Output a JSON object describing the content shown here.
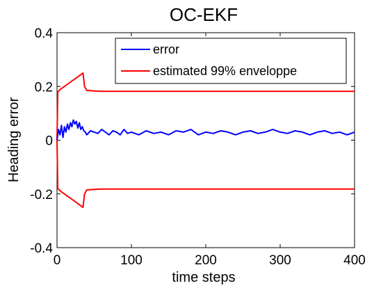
{
  "chart_data": {
    "type": "line",
    "title": "OC-EKF",
    "xlabel": "time steps",
    "ylabel": "Heading error",
    "xlim": [
      0,
      400
    ],
    "ylim": [
      -0.4,
      0.4
    ],
    "xticks": [
      0,
      100,
      200,
      300,
      400
    ],
    "yticks": [
      -0.4,
      -0.2,
      0,
      0.2,
      0.4
    ],
    "xtick_labels": [
      "0",
      "100",
      "200",
      "300",
      "400"
    ],
    "ytick_labels": [
      "-0.4",
      "-0.2",
      "0",
      "0.2",
      "0.4"
    ],
    "grid": false,
    "legend_position": "top-right",
    "series": [
      {
        "name": "error",
        "color": "#0000ff",
        "x": [
          0,
          2,
          4,
          6,
          8,
          10,
          12,
          14,
          16,
          18,
          20,
          22,
          24,
          26,
          28,
          30,
          32,
          34,
          36,
          38,
          40,
          45,
          50,
          55,
          60,
          65,
          70,
          75,
          80,
          85,
          90,
          95,
          100,
          110,
          120,
          130,
          140,
          150,
          160,
          170,
          180,
          190,
          200,
          210,
          220,
          230,
          240,
          250,
          260,
          270,
          280,
          290,
          300,
          310,
          320,
          330,
          340,
          350,
          360,
          370,
          380,
          390,
          400
        ],
        "y": [
          0.0,
          0.04,
          0.02,
          0.055,
          0.01,
          0.05,
          0.03,
          0.06,
          0.04,
          0.065,
          0.05,
          0.075,
          0.06,
          0.07,
          0.045,
          0.065,
          0.04,
          0.05,
          0.035,
          0.03,
          0.02,
          0.035,
          0.03,
          0.025,
          0.04,
          0.03,
          0.02,
          0.035,
          0.03,
          0.02,
          0.04,
          0.025,
          0.03,
          0.02,
          0.035,
          0.025,
          0.03,
          0.02,
          0.035,
          0.03,
          0.04,
          0.02,
          0.03,
          0.025,
          0.035,
          0.03,
          0.02,
          0.03,
          0.035,
          0.025,
          0.03,
          0.04,
          0.03,
          0.025,
          0.035,
          0.03,
          0.02,
          0.03,
          0.035,
          0.025,
          0.03,
          0.02,
          0.03
        ]
      },
      {
        "name": "estimated 99% enveloppe",
        "color": "#ff0000",
        "x": [
          0,
          1,
          5,
          10,
          15,
          20,
          25,
          30,
          35,
          37,
          40,
          50,
          60,
          100,
          150,
          200,
          250,
          300,
          350,
          400
        ],
        "y": [
          0.0,
          0.18,
          0.19,
          0.2,
          0.21,
          0.22,
          0.23,
          0.24,
          0.25,
          0.2,
          0.185,
          0.183,
          0.182,
          0.182,
          0.182,
          0.182,
          0.182,
          0.182,
          0.182,
          0.182
        ]
      },
      {
        "name": "",
        "color": "#ff0000",
        "x": [
          0,
          1,
          5,
          10,
          15,
          20,
          25,
          30,
          35,
          37,
          40,
          50,
          60,
          100,
          150,
          200,
          250,
          300,
          350,
          400
        ],
        "y": [
          0.0,
          -0.18,
          -0.19,
          -0.2,
          -0.21,
          -0.22,
          -0.23,
          -0.24,
          -0.25,
          -0.2,
          -0.185,
          -0.183,
          -0.182,
          -0.182,
          -0.182,
          -0.182,
          -0.182,
          -0.182,
          -0.182,
          -0.182
        ]
      }
    ]
  }
}
